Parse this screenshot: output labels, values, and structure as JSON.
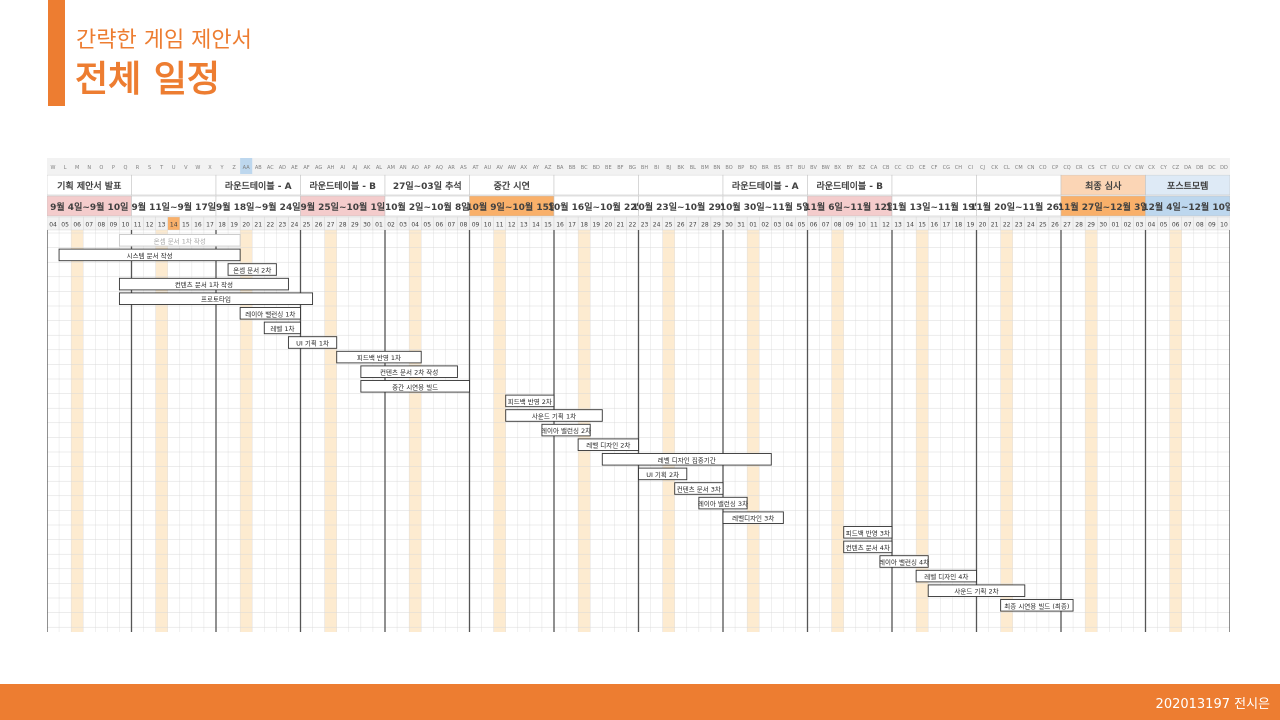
{
  "header": {
    "subtitle": "간략한 게임 제안서",
    "title": "전체 일정"
  },
  "footer": {
    "author": "202013197 전시은"
  },
  "gantt": {
    "column_letters": [
      "W",
      "L",
      "M",
      "N",
      "O",
      "P",
      "Q",
      "R",
      "S",
      "T",
      "U",
      "V",
      "W",
      "X",
      "Y",
      "Z",
      "AA",
      "AB",
      "AC",
      "AD",
      "AE",
      "AF",
      "AG",
      "AH",
      "AI",
      "AJ",
      "AK",
      "AL",
      "AM",
      "AN",
      "AO",
      "AP",
      "AQ",
      "AR",
      "AS",
      "AT",
      "AU",
      "AV",
      "AW",
      "AX",
      "AY",
      "AZ",
      "BA",
      "BB",
      "BC",
      "BD",
      "BE",
      "BF",
      "BG",
      "BH",
      "BI",
      "BJ",
      "BK",
      "BL",
      "BM",
      "BN",
      "BO",
      "BP",
      "BQ",
      "BR",
      "BS",
      "BT",
      "BU",
      "BV",
      "BW",
      "BX",
      "BY",
      "BZ",
      "CA",
      "CB",
      "CC",
      "CD",
      "CE",
      "CF",
      "CG",
      "CH",
      "CI",
      "CJ",
      "CK",
      "CL",
      "CM",
      "CN",
      "CO",
      "CP",
      "CQ",
      "CR",
      "CS",
      "CT",
      "CU",
      "CV",
      "CW",
      "CX",
      "CY",
      "CZ",
      "DA",
      "DB",
      "DC",
      "DD"
    ],
    "weeks": [
      {
        "event": "기획 제안서 발표",
        "range": "9월 4일~9월 10일",
        "event_color": "#ffffff",
        "range_color": "#F4CCCC",
        "days": [
          "04",
          "05",
          "06",
          "07",
          "08",
          "09",
          "10"
        ]
      },
      {
        "event": "",
        "range": "9월 11일~9월 17일",
        "event_color": "#ffffff",
        "range_color": "#ffffff",
        "days": [
          "11",
          "12",
          "13",
          "14",
          "15",
          "16",
          "17"
        ]
      },
      {
        "event": "라운드테이블 - A",
        "range": "9월 18일~9월 24일",
        "event_color": "#ffffff",
        "range_color": "#ffffff",
        "days": [
          "18",
          "19",
          "20",
          "21",
          "22",
          "23",
          "24"
        ]
      },
      {
        "event": "라운드테이블 - B",
        "range": "9월 25일~10월 1일",
        "event_color": "#ffffff",
        "range_color": "#F4CCCC",
        "days": [
          "25",
          "26",
          "27",
          "28",
          "29",
          "30",
          "01"
        ]
      },
      {
        "event": "27일~03일 추석",
        "range": "10월 2일~10월 8일",
        "event_color": "#ffffff",
        "range_color": "#ffffff",
        "days": [
          "02",
          "03",
          "04",
          "05",
          "06",
          "07",
          "08"
        ]
      },
      {
        "event": "중간 시연",
        "range": "10월 9일~10월 15일",
        "event_color": "#ffffff",
        "range_color": "#F9B06A",
        "days": [
          "09",
          "10",
          "11",
          "12",
          "13",
          "14",
          "15"
        ]
      },
      {
        "event": "",
        "range": "10월 16일~10월 22일",
        "event_color": "#ffffff",
        "range_color": "#ffffff",
        "days": [
          "16",
          "17",
          "18",
          "19",
          "20",
          "21",
          "22"
        ]
      },
      {
        "event": "",
        "range": "10월 23일~10월 29일",
        "event_color": "#ffffff",
        "range_color": "#ffffff",
        "days": [
          "23",
          "24",
          "25",
          "26",
          "27",
          "28",
          "29"
        ]
      },
      {
        "event": "라운드테이블 - A",
        "range": "10월 30일~11월 5일",
        "event_color": "#ffffff",
        "range_color": "#ffffff",
        "days": [
          "30",
          "31",
          "01",
          "02",
          "03",
          "04",
          "05"
        ]
      },
      {
        "event": "라운드테이블 - B",
        "range": "11월 6일~11월 12일",
        "event_color": "#ffffff",
        "range_color": "#F4CCCC",
        "days": [
          "06",
          "07",
          "08",
          "09",
          "10",
          "11",
          "12"
        ]
      },
      {
        "event": "",
        "range": "11월 13일~11월 19일",
        "event_color": "#ffffff",
        "range_color": "#ffffff",
        "days": [
          "13",
          "14",
          "15",
          "16",
          "17",
          "18",
          "19"
        ]
      },
      {
        "event": "",
        "range": "11월 20일~11월 26일",
        "event_color": "#ffffff",
        "range_color": "#ffffff",
        "days": [
          "20",
          "21",
          "22",
          "23",
          "24",
          "25",
          "26"
        ]
      },
      {
        "event": "최종 심사",
        "range": "11월 27일~12월 3일",
        "event_color": "#FBD5B5",
        "range_color": "#F9B06A",
        "days": [
          "27",
          "28",
          "29",
          "30",
          "01",
          "02",
          "03"
        ]
      },
      {
        "event": "포스트모템",
        "range": "12월 4일~12월 10일",
        "event_color": "#DEEAF6",
        "range_color": "#BDD7EE",
        "days": [
          "04",
          "05",
          "06",
          "07",
          "08",
          "09",
          "10"
        ]
      }
    ],
    "tasks": [
      {
        "label": "온셉 문서 1차 작성",
        "start": 6.0,
        "end": 16.0,
        "faded": true
      },
      {
        "label": "시스템 문서 작성",
        "start": 1.0,
        "end": 16.0
      },
      {
        "label": "온셉 문서 2차",
        "start": 15.0,
        "end": 19.0
      },
      {
        "label": "컨텐츠 문서 1차 작성",
        "start": 6.0,
        "end": 20.0
      },
      {
        "label": "프로토타입",
        "start": 6.0,
        "end": 22.0
      },
      {
        "label": "레이아 밸런싱 1차",
        "start": 16.0,
        "end": 21.0
      },
      {
        "label": "레벨 1차",
        "start": 18.0,
        "end": 21.0
      },
      {
        "label": "UI 기획 1차",
        "start": 20.0,
        "end": 24.0
      },
      {
        "label": "피드백 반영 1차",
        "start": 24.0,
        "end": 31.0
      },
      {
        "label": "컨텐츠 문서 2차 작성",
        "start": 26.0,
        "end": 34.0
      },
      {
        "label": "중간 시연용 빌드",
        "start": 26.0,
        "end": 35.0
      },
      {
        "label": "피드백 반영 2차",
        "start": 38.0,
        "end": 42.0
      },
      {
        "label": "사운드 기획 1차",
        "start": 38.0,
        "end": 46.0
      },
      {
        "label": "레이아 밸런싱 2차",
        "start": 41.0,
        "end": 45.0
      },
      {
        "label": "레벨 디자인 2차",
        "start": 44.0,
        "end": 49.0
      },
      {
        "label": "레벨 디자인 집중기간",
        "start": 46.0,
        "end": 60.0
      },
      {
        "label": "UI 기획 2차",
        "start": 49.0,
        "end": 53.0
      },
      {
        "label": "컨텐츠 문서 3차",
        "start": 52.0,
        "end": 56.0
      },
      {
        "label": "레이아 밸런싱 3차",
        "start": 54.0,
        "end": 58.0
      },
      {
        "label": "레벨디자인 3차",
        "start": 56.0,
        "end": 61.0
      },
      {
        "label": "피드백 반영 3차",
        "start": 66.0,
        "end": 70.0
      },
      {
        "label": "컨텐츠 문서 4차",
        "start": 66.0,
        "end": 70.0
      },
      {
        "label": "레이아 밸런싱 4차",
        "start": 69.0,
        "end": 73.0
      },
      {
        "label": "레벨 디자인 4차",
        "start": 72.0,
        "end": 77.0
      },
      {
        "label": "사운드 기획 2차",
        "start": 73.0,
        "end": 81.0
      },
      {
        "label": "최종 시연용 빌드 (최종)",
        "start": 79.0,
        "end": 85.0
      }
    ],
    "highlight_day_index": 10,
    "highlight_col_index": 16,
    "theme": {
      "accent": "#ED7D31",
      "weekend_stripe": "#FDEBD0",
      "grid_line": "#D9D9D9",
      "week_line": "#555555"
    }
  }
}
